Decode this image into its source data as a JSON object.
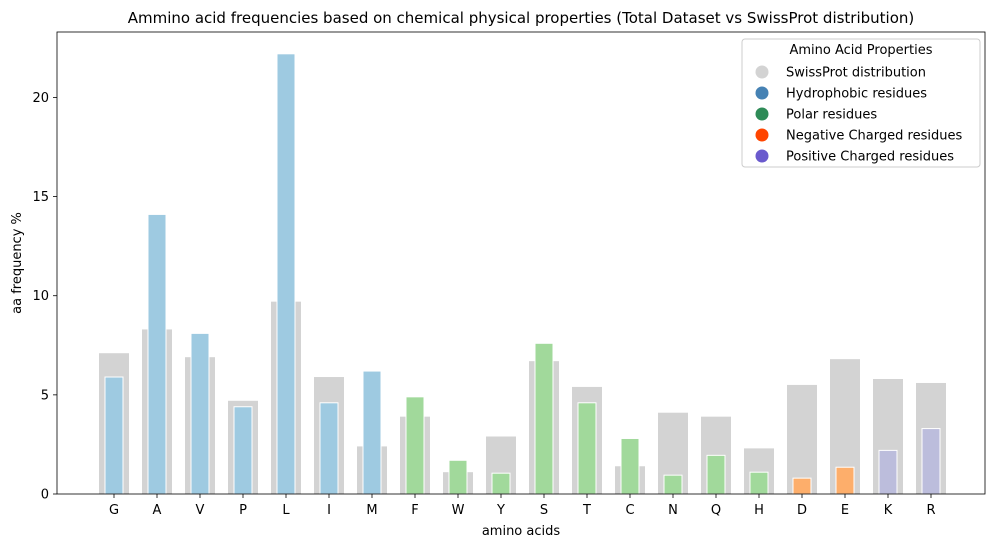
{
  "chart_data": {
    "type": "bar",
    "title": "Ammino acid frequencies based on chemical physical properties (Total Dataset vs SwissProt distribution)",
    "xlabel": "amino acids",
    "ylabel": "aa frequency %",
    "ylim": [
      0,
      23.3
    ],
    "yticks": [
      0,
      5,
      10,
      15,
      20
    ],
    "categories": [
      "G",
      "A",
      "V",
      "P",
      "L",
      "I",
      "M",
      "F",
      "W",
      "Y",
      "S",
      "T",
      "C",
      "N",
      "Q",
      "H",
      "D",
      "E",
      "K",
      "R"
    ],
    "series": [
      {
        "name": "SwissProt distribution",
        "color": "#d3d3d3",
        "values": [
          7.1,
          8.3,
          6.9,
          4.7,
          9.7,
          5.9,
          2.4,
          3.9,
          1.1,
          2.9,
          6.7,
          5.4,
          1.4,
          4.1,
          3.9,
          2.3,
          5.5,
          6.8,
          5.8,
          5.6
        ]
      },
      {
        "name": "Total Dataset",
        "values": [
          5.9,
          14.1,
          8.1,
          4.4,
          22.2,
          4.6,
          6.2,
          4.9,
          1.7,
          1.05,
          7.6,
          4.6,
          2.8,
          0.95,
          1.95,
          1.1,
          0.8,
          1.35,
          2.2,
          3.3
        ],
        "groups": [
          "hydrophobic",
          "hydrophobic",
          "hydrophobic",
          "hydrophobic",
          "hydrophobic",
          "hydrophobic",
          "hydrophobic",
          "polar",
          "polar",
          "polar",
          "polar",
          "polar",
          "polar",
          "polar",
          "polar",
          "polar",
          "negative",
          "negative",
          "positive",
          "positive"
        ]
      }
    ],
    "group_colors": {
      "hydrophobic": "#9ecae1",
      "polar": "#a1d99b",
      "negative": "#fdae6b",
      "positive": "#bcbddc"
    },
    "legend": {
      "title": "Amino Acid Properties",
      "placement": "top-right",
      "entries": [
        {
          "label": "SwissProt distribution",
          "color": "#d3d3d3"
        },
        {
          "label": "Hydrophobic residues",
          "color": "#4682b4"
        },
        {
          "label": "Polar residues",
          "color": "#2e8b57"
        },
        {
          "label": "Negative Charged residues",
          "color": "#ff4500"
        },
        {
          "label": "Positive Charged residues",
          "color": "#6a5acd"
        }
      ]
    },
    "grid": false
  }
}
